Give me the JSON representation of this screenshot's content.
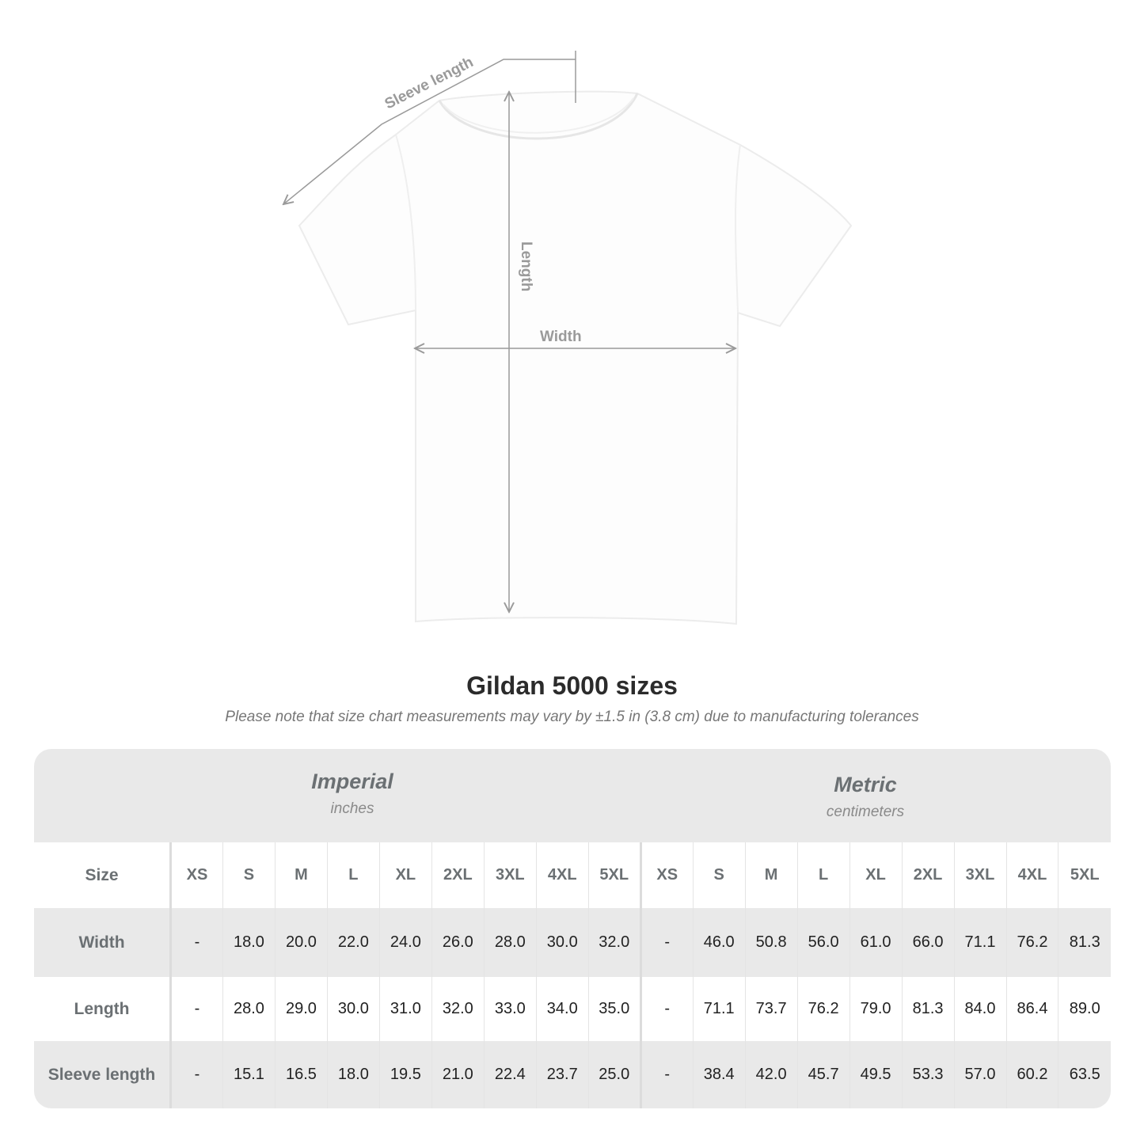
{
  "diagram": {
    "labels": {
      "sleeve": "Sleeve length",
      "length": "Length",
      "width": "Width"
    },
    "line_color": "#9a9a9a"
  },
  "title": "Gildan 5000 sizes",
  "note": "Please note that size chart measurements may vary by ±1.5 in (3.8 cm) due to manufacturing tolerances",
  "units": {
    "imperial": {
      "name": "Imperial",
      "unit": "inches"
    },
    "metric": {
      "name": "Metric",
      "unit": "centimeters"
    }
  },
  "table": {
    "size_label": "Size",
    "sizes": [
      "XS",
      "S",
      "M",
      "L",
      "XL",
      "2XL",
      "3XL",
      "4XL",
      "5XL"
    ],
    "rows": [
      {
        "label": "Width",
        "imperial": [
          "-",
          "18.0",
          "20.0",
          "22.0",
          "24.0",
          "26.0",
          "28.0",
          "30.0",
          "32.0"
        ],
        "metric": [
          "-",
          "46.0",
          "50.8",
          "56.0",
          "61.0",
          "66.0",
          "71.1",
          "76.2",
          "81.3"
        ]
      },
      {
        "label": "Length",
        "imperial": [
          "-",
          "28.0",
          "29.0",
          "30.0",
          "31.0",
          "32.0",
          "33.0",
          "34.0",
          "35.0"
        ],
        "metric": [
          "-",
          "71.1",
          "73.7",
          "76.2",
          "79.0",
          "81.3",
          "84.0",
          "86.4",
          "89.0"
        ]
      },
      {
        "label": "Sleeve length",
        "imperial": [
          "-",
          "15.1",
          "16.5",
          "18.0",
          "19.5",
          "21.0",
          "22.4",
          "23.7",
          "25.0"
        ],
        "metric": [
          "-",
          "38.4",
          "42.0",
          "45.7",
          "49.5",
          "53.3",
          "57.0",
          "60.2",
          "63.5"
        ]
      }
    ]
  }
}
